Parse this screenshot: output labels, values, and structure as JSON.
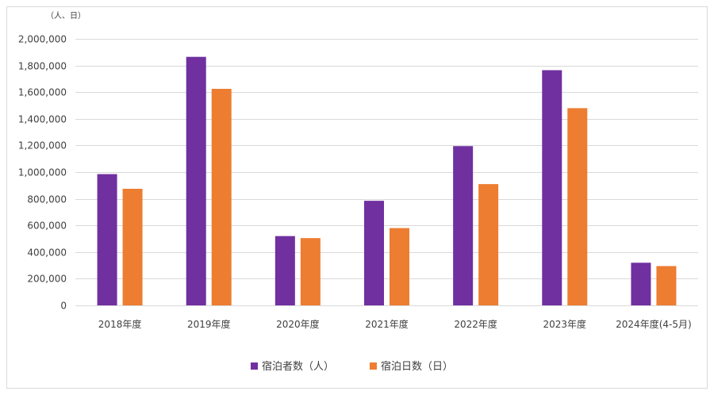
{
  "chart_data": {
    "type": "bar",
    "title": "",
    "xlabel": "",
    "ylabel": "",
    "unit_label": "（人、日）",
    "categories": [
      "2018年度",
      "2019年度",
      "2020年度",
      "2021年度",
      "2022年度",
      "2023年度",
      "2024年度(4-5月)"
    ],
    "series": [
      {
        "name": "宿泊者数（人）",
        "color": "#7030A0",
        "values": [
          985000,
          1865000,
          520000,
          785000,
          1195000,
          1765000,
          320000
        ]
      },
      {
        "name": "宿泊日数（日）",
        "color": "#ED7D31",
        "values": [
          875000,
          1625000,
          505000,
          580000,
          910000,
          1480000,
          295000
        ]
      }
    ],
    "ylim": [
      0,
      2000000
    ],
    "yticks": [
      {
        "value": 0,
        "label": "0"
      },
      {
        "value": 200000,
        "label": "200,000"
      },
      {
        "value": 400000,
        "label": "400,000"
      },
      {
        "value": 600000,
        "label": "600,000"
      },
      {
        "value": 800000,
        "label": "800,000"
      },
      {
        "value": 1000000,
        "label": "1,000,000"
      },
      {
        "value": 1200000,
        "label": "1,200,000"
      },
      {
        "value": 1400000,
        "label": "1,400,000"
      },
      {
        "value": 1600000,
        "label": "1,600,000"
      },
      {
        "value": 1800000,
        "label": "1,800,000"
      },
      {
        "value": 2000000,
        "label": "2,000,000"
      }
    ],
    "grid": true,
    "legend_position": "bottom"
  }
}
